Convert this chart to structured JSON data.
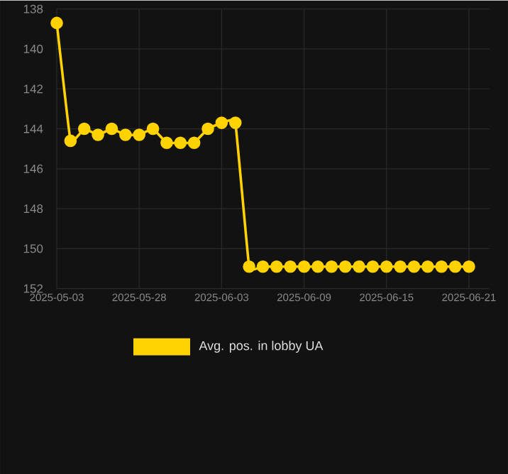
{
  "chart_data": {
    "type": "line",
    "categories": [
      "2025-05-03",
      null,
      null,
      null,
      null,
      null,
      "2025-05-28",
      null,
      null,
      null,
      null,
      null,
      "2025-06-03",
      null,
      null,
      null,
      null,
      null,
      "2025-06-09",
      null,
      null,
      null,
      null,
      null,
      "2025-06-15",
      null,
      null,
      null,
      null,
      null,
      "2025-06-21"
    ],
    "series": [
      {
        "name": "Avg. pos. in lobby UA",
        "color": "#ffd200",
        "values": [
          138.7,
          144.6,
          144.0,
          144.3,
          144.0,
          144.3,
          144.3,
          144.0,
          144.7,
          144.7,
          144.7,
          144.0,
          143.7,
          143.7,
          150.9,
          150.9,
          150.9,
          150.9,
          150.9,
          150.9,
          150.9,
          150.9,
          150.9,
          150.9,
          150.9,
          150.9,
          150.9,
          150.9,
          150.9,
          150.9,
          150.9
        ]
      }
    ],
    "ylim": [
      152,
      138
    ],
    "yticks": [
      138,
      140,
      142,
      144,
      146,
      148,
      150,
      152
    ],
    "grid": true,
    "legend": "bottom",
    "marker": "circle"
  }
}
